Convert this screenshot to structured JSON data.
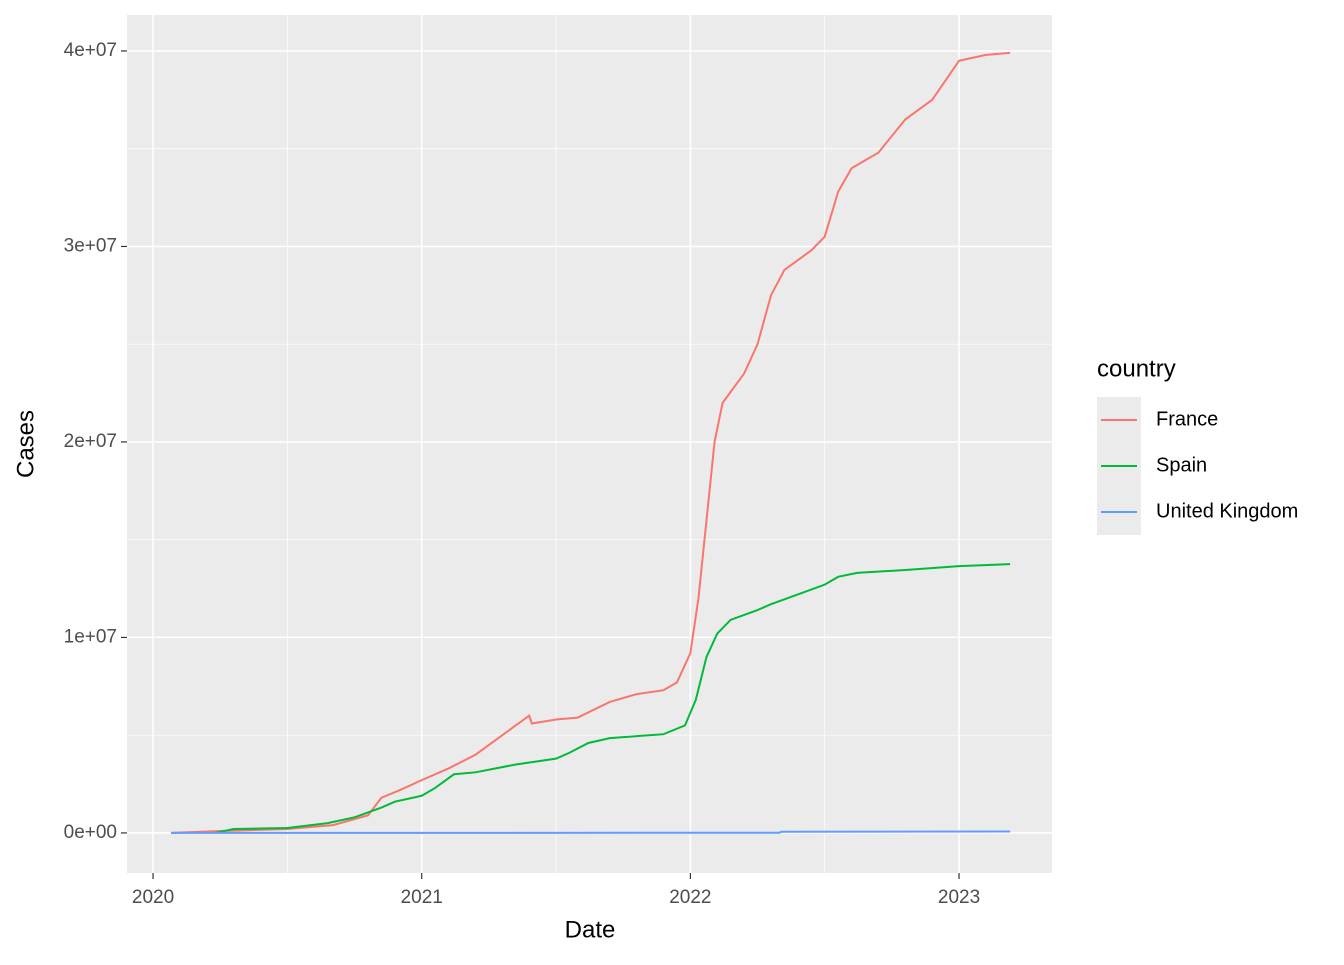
{
  "chart_data": {
    "type": "line",
    "x_label": "Date",
    "y_label": "Cases",
    "legend_title": "country",
    "legend_position": "right",
    "grid": true,
    "xlim": [
      2019.903,
      2023.346
    ],
    "xticks": [
      2020,
      2021,
      2022,
      2023
    ],
    "ylim": [
      -2050000,
      41840000
    ],
    "yticks": [
      {
        "value": 0,
        "label": "0e+00"
      },
      {
        "value": 10000000,
        "label": "1e+07"
      },
      {
        "value": 20000000,
        "label": "2e+07"
      },
      {
        "value": 30000000,
        "label": "3e+07"
      },
      {
        "value": 40000000,
        "label": "4e+07"
      }
    ],
    "series": [
      {
        "name": "France",
        "color": "#F8766D",
        "x": [
          2020.067,
          2020.25,
          2020.5,
          2020.67,
          2020.8,
          2020.85,
          2020.92,
          2021.0,
          2021.1,
          2021.2,
          2021.3,
          2021.38,
          2021.4,
          2021.41,
          2021.5,
          2021.58,
          2021.7,
          2021.8,
          2021.9,
          2021.95,
          2022.0,
          2022.03,
          2022.06,
          2022.09,
          2022.12,
          2022.2,
          2022.25,
          2022.3,
          2022.35,
          2022.45,
          2022.5,
          2022.55,
          2022.6,
          2022.7,
          2022.8,
          2022.9,
          2022.95,
          2023.0,
          2023.1,
          2023.19
        ],
        "values": [
          0,
          100000,
          200000,
          400000,
          900000,
          1800000,
          2200000,
          2700000,
          3300000,
          4000000,
          5000000,
          5800000,
          6000000,
          5600000,
          5800000,
          5900000,
          6700000,
          7100000,
          7300000,
          7700000,
          9200000,
          12000000,
          16000000,
          20000000,
          22000000,
          23500000,
          25000000,
          27500000,
          28800000,
          29800000,
          30500000,
          32800000,
          34000000,
          34800000,
          36500000,
          37500000,
          38500000,
          39500000,
          39800000,
          39900000
        ]
      },
      {
        "name": "Spain",
        "color": "#00BA38",
        "x": [
          2020.23,
          2020.3,
          2020.5,
          2020.65,
          2020.75,
          2020.85,
          2020.9,
          2021.0,
          2021.05,
          2021.12,
          2021.2,
          2021.35,
          2021.5,
          2021.55,
          2021.62,
          2021.7,
          2021.8,
          2021.9,
          2021.98,
          2022.02,
          2022.06,
          2022.1,
          2022.15,
          2022.25,
          2022.3,
          2022.4,
          2022.5,
          2022.55,
          2022.62,
          2022.8,
          2023.0,
          2023.19
        ],
        "values": [
          0,
          200000,
          250000,
          500000,
          800000,
          1300000,
          1600000,
          1900000,
          2300000,
          3000000,
          3100000,
          3500000,
          3800000,
          4100000,
          4600000,
          4850000,
          4950000,
          5050000,
          5500000,
          6800000,
          9000000,
          10200000,
          10900000,
          11400000,
          11700000,
          12200000,
          12700000,
          13100000,
          13300000,
          13450000,
          13650000,
          13750000
        ]
      },
      {
        "name": "United Kingdom",
        "color": "#619CFF",
        "x": [
          2020.067,
          2022.33,
          2022.34,
          2023.19
        ],
        "values": [
          0,
          10000,
          60000,
          70000
        ]
      }
    ]
  }
}
